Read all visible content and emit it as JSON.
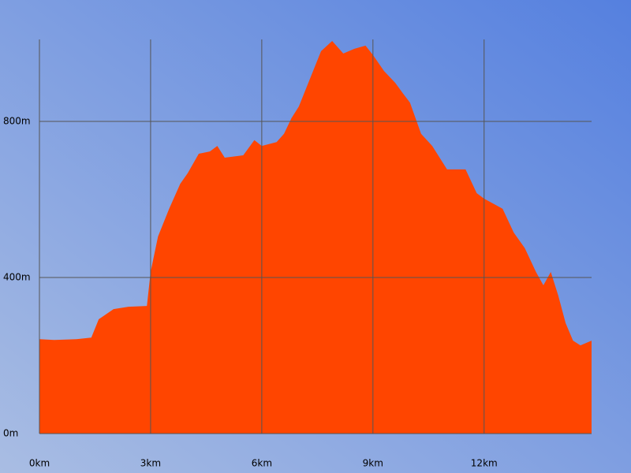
{
  "chart_data": {
    "type": "area",
    "x": [
      0,
      0.4,
      1.0,
      1.4,
      1.6,
      2.0,
      2.4,
      2.9,
      3.0,
      3.2,
      3.5,
      3.8,
      4.0,
      4.3,
      4.6,
      4.8,
      5.0,
      5.5,
      5.8,
      6.0,
      6.4,
      6.6,
      6.8,
      7.0,
      7.3,
      7.6,
      7.9,
      8.2,
      8.5,
      8.8,
      9.0,
      9.3,
      9.6,
      9.8,
      10.0,
      10.3,
      10.6,
      11.0,
      11.5,
      11.8,
      12.0,
      12.5,
      12.8,
      13.1,
      13.4,
      13.6,
      13.8,
      14.0,
      14.2,
      14.4,
      14.6,
      14.9
    ],
    "values": [
      242,
      240,
      242,
      246,
      293,
      319,
      325,
      327,
      414,
      505,
      576,
      640,
      667,
      717,
      723,
      737,
      707,
      713,
      752,
      737,
      747,
      768,
      808,
      838,
      909,
      980,
      1006,
      974,
      986,
      994,
      970,
      929,
      899,
      873,
      848,
      768,
      737,
      677,
      677,
      616,
      602,
      576,
      515,
      475,
      414,
      380,
      414,
      354,
      283,
      238,
      226,
      238
    ],
    "color": "#ff4500",
    "xlim": [
      0,
      14.9
    ],
    "ylim": [
      0,
      1010
    ],
    "xticks": [
      {
        "value": 0,
        "label": "0km"
      },
      {
        "value": 3,
        "label": "3km"
      },
      {
        "value": 6,
        "label": "6km"
      },
      {
        "value": 9,
        "label": "9km"
      },
      {
        "value": 12,
        "label": "12km"
      }
    ],
    "yticks": [
      {
        "value": 0,
        "label": "0m"
      },
      {
        "value": 400,
        "label": "400m"
      },
      {
        "value": 800,
        "label": "800m"
      }
    ],
    "grid": true
  }
}
